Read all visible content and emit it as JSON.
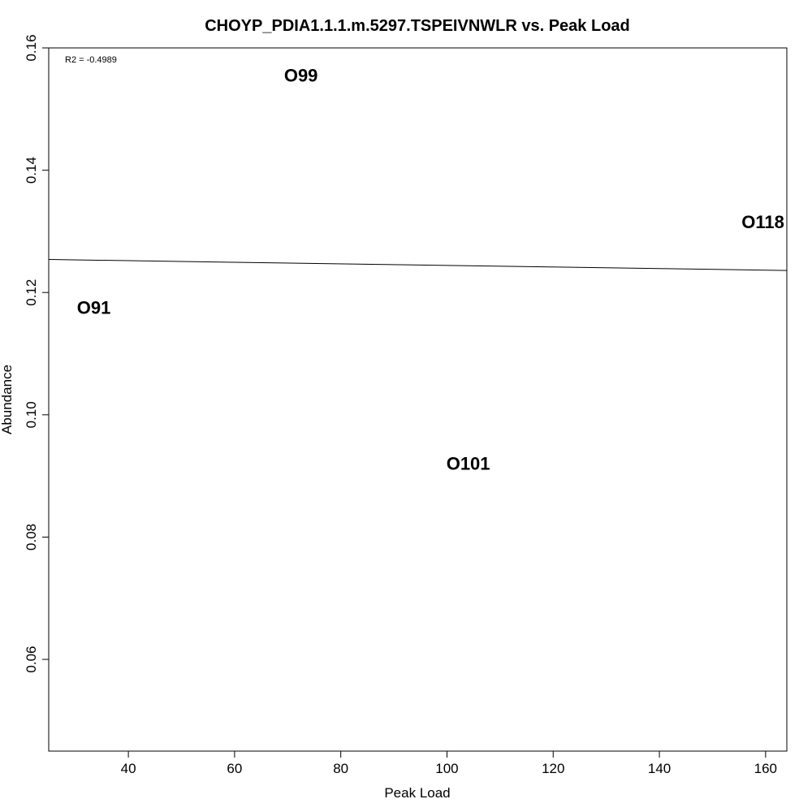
{
  "chart_data": {
    "type": "scatter",
    "title": "CHOYP_PDIA1.1.1.m.5297.TSPEIVNWLR vs. Peak Load",
    "xlabel": "Peak Load",
    "ylabel": "Abundance",
    "xlim": [
      25,
      164
    ],
    "ylim": [
      0.045,
      0.16
    ],
    "xticks": [
      40,
      60,
      80,
      100,
      120,
      140,
      160
    ],
    "xtick_labels": [
      "40",
      "60",
      "80",
      "100",
      "120",
      "140",
      "160"
    ],
    "yticks": [
      0.06,
      0.08,
      0.1,
      0.12,
      0.14,
      0.16
    ],
    "ytick_labels": [
      "0.06",
      "0.08",
      "0.10",
      "0.12",
      "0.14",
      "0.16"
    ],
    "annotation": "R2 = -0.4989",
    "points": [
      {
        "label": "O91",
        "x": 33.5,
        "y": 0.1175
      },
      {
        "label": "O99",
        "x": 72.5,
        "y": 0.1555
      },
      {
        "label": "O101",
        "x": 104,
        "y": 0.092
      },
      {
        "label": "O118",
        "x": 159.5,
        "y": 0.1315
      }
    ],
    "fit_line": {
      "x": [
        25,
        164
      ],
      "y": [
        0.1254,
        0.1236
      ]
    },
    "grid": false,
    "legend": "none"
  }
}
